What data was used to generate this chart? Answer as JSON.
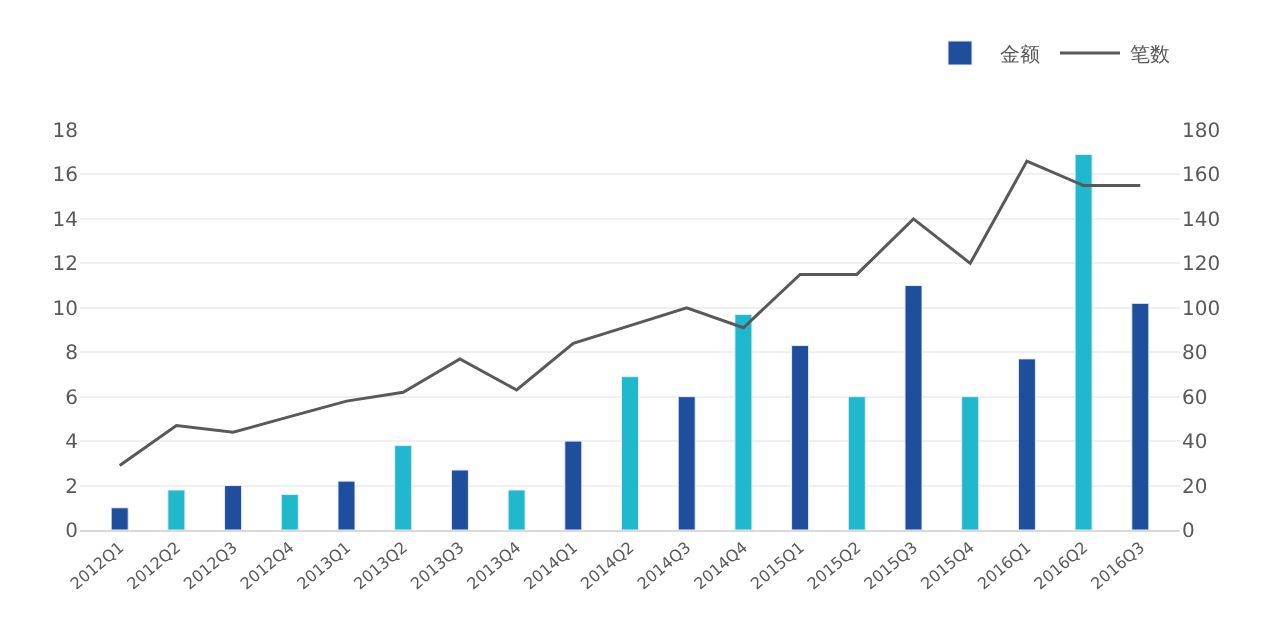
{
  "chart_data": {
    "type": "bar",
    "categories": [
      "2012Q1",
      "2012Q2",
      "2012Q3",
      "2012Q4",
      "2013Q1",
      "2013Q2",
      "2013Q3",
      "2013Q4",
      "2014Q1",
      "2014Q2",
      "2014Q3",
      "2014Q4",
      "2015Q1",
      "2015Q2",
      "2015Q3",
      "2015Q4",
      "2016Q1",
      "2016Q2",
      "2016Q3"
    ],
    "series": [
      {
        "name": "金额",
        "colors": [
          "#1f4e9c",
          "#1fb8cc",
          "#1f4e9c",
          "#1fb8cc",
          "#1f4e9c",
          "#1fb8cc",
          "#1f4e9c",
          "#1fb8cc",
          "#1f4e9c",
          "#1fb8cc",
          "#1f4e9c",
          "#1fb8cc",
          "#1f4e9c",
          "#1fb8cc",
          "#1f4e9c",
          "#1fb8cc",
          "#1f4e9c",
          "#1fb8cc",
          "#1f4e9c"
        ],
        "values": [
          1.0,
          1.8,
          2.0,
          1.6,
          2.2,
          3.8,
          2.7,
          1.8,
          4.0,
          6.9,
          6.0,
          9.7,
          8.3,
          6.0,
          11.0,
          6.0,
          7.7,
          16.9,
          10.2
        ]
      },
      {
        "name": "笔数",
        "type": "line",
        "axis": "y2",
        "color": "#595959",
        "values": [
          29,
          47,
          44,
          51,
          58,
          62,
          77,
          63,
          84,
          92,
          100,
          91,
          115,
          115,
          140,
          120,
          166,
          155,
          155
        ]
      }
    ],
    "ylim": [
      0,
      18
    ],
    "yticks": [
      0,
      2,
      4,
      6,
      8,
      10,
      12,
      14,
      16,
      18
    ],
    "y2lim": [
      0,
      180
    ],
    "y2ticks": [
      0,
      20,
      40,
      60,
      80,
      100,
      120,
      140,
      160,
      180
    ],
    "grid": "y",
    "legend": "top right",
    "marker": "none",
    "line_style": "solid"
  }
}
